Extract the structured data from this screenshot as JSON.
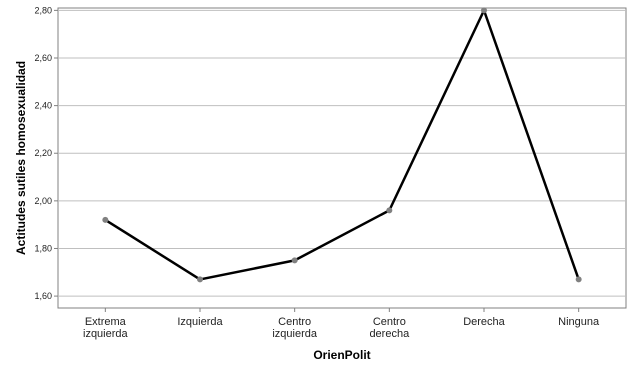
{
  "chart_data": {
    "type": "line",
    "categories": [
      [
        "Extrema",
        "izquierda"
      ],
      [
        "Izquierda"
      ],
      [
        "Centro",
        "izquierda"
      ],
      [
        "Centro",
        "derecha"
      ],
      [
        "Derecha"
      ],
      [
        "Ninguna"
      ]
    ],
    "series": [
      {
        "values": [
          1.92,
          1.67,
          1.75,
          1.96,
          2.8,
          null
        ],
        "marker_values": [
          1.92,
          1.67,
          1.75,
          1.96,
          2.8,
          1.67
        ],
        "line_segments_to_end": true
      }
    ],
    "xlabel": "OrienPolit",
    "ylabel": "Actitudes sutiles homosexualidad",
    "ylim": [
      1.55,
      2.81
    ],
    "yticks": [
      1.6,
      1.8,
      2.0,
      2.2,
      2.4,
      2.6
    ],
    "ytick_labels": [
      "1,60",
      "1,80",
      "2,00",
      "2,20",
      "2,40",
      "2,60"
    ],
    "top_tick_label": "2,80",
    "grid": "horizontal",
    "line_color": "#000000",
    "marker_color": "#808080",
    "gridline_color": "#bfbfbf"
  }
}
